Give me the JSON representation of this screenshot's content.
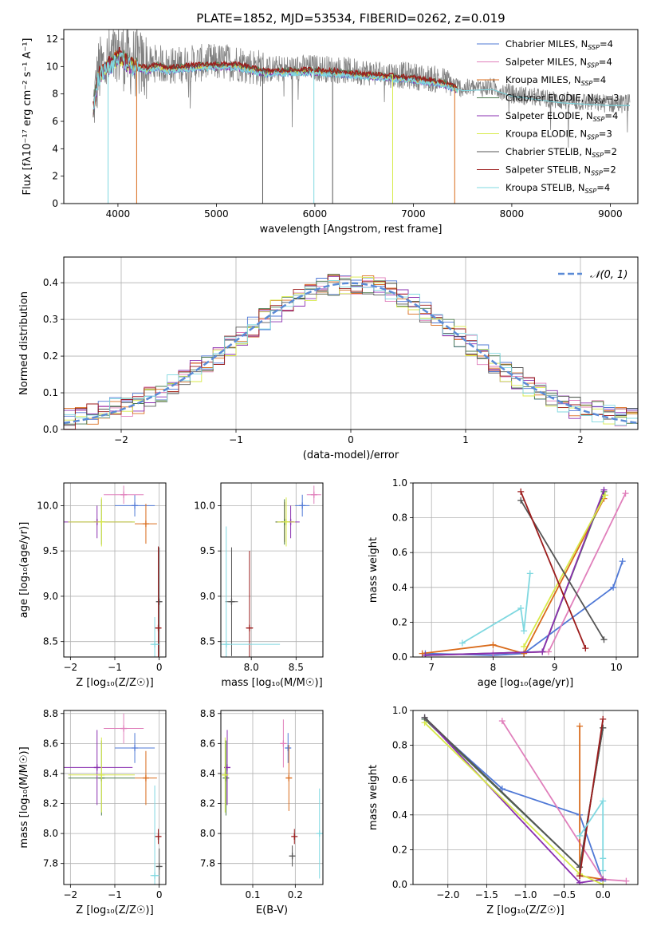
{
  "figure_title": "PLATE=1852, MJD=53534, FIBERID=0262, z=0.019",
  "palette": [
    "#4f78d6",
    "#e07fbb",
    "#d96b1b",
    "#4c7a4c",
    "#8a2fb0",
    "#d8ea4a",
    "#555555",
    "#9c1c1c",
    "#7fd8e0"
  ],
  "models": [
    {
      "name": "Chabrier MILES",
      "nssp": "4"
    },
    {
      "name": "Salpeter MILES",
      "nssp": "4"
    },
    {
      "name": "Kroupa MILES",
      "nssp": "4"
    },
    {
      "name": "Chabrier ELODIE",
      "nssp": "3"
    },
    {
      "name": "Salpeter ELODIE",
      "nssp": "4"
    },
    {
      "name": "Kroupa ELODIE",
      "nssp": "3"
    },
    {
      "name": "Chabrier STELIB",
      "nssp": "2"
    },
    {
      "name": "Salpeter STELIB",
      "nssp": "2"
    },
    {
      "name": "Kroupa STELIB",
      "nssp": "4"
    }
  ],
  "chart_data": [
    {
      "id": "spectrum",
      "type": "line",
      "xlabel": "wavelength [Angstrom, rest frame]",
      "ylabel": "Flux [fλ10⁻¹⁷ erg cm⁻² s⁻¹ A⁻¹]",
      "xlim": [
        3450,
        9280
      ],
      "ylim": [
        0,
        12.7
      ],
      "xticks": [
        4000,
        5000,
        6000,
        7000,
        8000,
        9000
      ],
      "yticks": [
        0,
        2,
        4,
        6,
        8,
        10,
        12
      ],
      "legend": "top-right",
      "continuum": {
        "x": [
          3750,
          3800,
          3850,
          3900,
          3950,
          4000,
          4050,
          4100,
          4200,
          4300,
          4400,
          4500,
          4700,
          5000,
          5200,
          5500,
          6000,
          6500,
          7000,
          7300,
          7500,
          7800,
          8000,
          8500,
          9000,
          9200
        ],
        "y": [
          7.0,
          9.5,
          10.0,
          10.3,
          10.5,
          11.0,
          10.8,
          10.5,
          10.2,
          10.0,
          10.3,
          10.0,
          10.2,
          10.3,
          10.3,
          9.8,
          9.9,
          9.6,
          9.3,
          9.0,
          8.4,
          8.5,
          8.0,
          7.5,
          7.3,
          7.3
        ]
      },
      "data_range": [
        3750,
        9200
      ],
      "dropouts": [
        {
          "x": 3900,
          "series": 8
        },
        {
          "x": 4190,
          "series": 2
        },
        {
          "x": 5470,
          "series": 6
        },
        {
          "x": 5990,
          "series": 8
        },
        {
          "x": 6180,
          "series": 6
        },
        {
          "x": 6790,
          "series": 5
        },
        {
          "x": 7420,
          "series": 2
        }
      ]
    },
    {
      "id": "residual-histogram",
      "type": "bar",
      "xlabel": "(data-model)/error",
      "ylabel": "Normed distribution",
      "xlim": [
        -2.5,
        2.5
      ],
      "ylim": [
        0,
        0.47
      ],
      "xticks": [
        -2,
        -1,
        0,
        1,
        2
      ],
      "yticks": [
        0.0,
        0.1,
        0.2,
        0.3,
        0.4
      ],
      "reference_curve": {
        "name": "𝒩(0, 1)",
        "style": "dashed",
        "color": "#5b8bd6"
      },
      "bin_width": 0.1,
      "bin_range": [
        -2.5,
        2.5
      ],
      "series_count": 9
    },
    {
      "id": "age-vs-metallicity",
      "type": "scatter",
      "xlabel": "Z [log₁₀(Z/Z☉)]",
      "ylabel": "age  [log₁₀(age/yr)]",
      "xlim": [
        -2.15,
        0.15
      ],
      "ylim": [
        8.33,
        10.25
      ],
      "xticks": [
        -2,
        -1,
        0
      ],
      "yticks": [
        8.5,
        9.0,
        9.5,
        10.0
      ],
      "points": [
        {
          "s": 0,
          "x": -0.55,
          "y": 10.0,
          "xe": 0.45,
          "ye": 0.12
        },
        {
          "s": 1,
          "x": -0.8,
          "y": 10.12,
          "xe": 0.45,
          "ye": 0.1
        },
        {
          "s": 2,
          "x": -0.3,
          "y": 9.8,
          "xe": 0.25,
          "ye": 0.22
        },
        {
          "s": 3,
          "x": -1.3,
          "y": 9.82,
          "xe": 0.75,
          "ye": 0.25
        },
        {
          "s": 4,
          "x": -1.4,
          "y": 9.82,
          "xe": 0.8,
          "ye": 0.18
        },
        {
          "s": 5,
          "x": -1.3,
          "y": 9.82,
          "xe": 0.75,
          "ye": 0.27
        },
        {
          "s": 6,
          "x": 0.0,
          "y": 8.94,
          "xe": 0.05,
          "ye": 0.6
        },
        {
          "s": 7,
          "x": -0.02,
          "y": 8.65,
          "xe": 0.05,
          "ye": 0.9
        },
        {
          "s": 8,
          "x": -0.1,
          "y": 8.47,
          "xe": 0.1,
          "ye": 0.3
        }
      ]
    },
    {
      "id": "age-vs-mass",
      "type": "scatter",
      "xlabel": "mass [log₁₀(M/M☉)]",
      "ylabel": "",
      "xlim": [
        7.66,
        8.8
      ],
      "ylim": [
        8.33,
        10.25
      ],
      "xticks": [
        8.0,
        8.5
      ],
      "yticks": [
        8.5,
        9.0,
        9.5,
        10.0
      ],
      "points": [
        {
          "s": 0,
          "x": 8.57,
          "y": 10.0,
          "xe": 0.08,
          "ye": 0.12
        },
        {
          "s": 1,
          "x": 8.7,
          "y": 10.12,
          "xe": 0.08,
          "ye": 0.1
        },
        {
          "s": 2,
          "x": 8.37,
          "y": 9.82,
          "xe": 0.1,
          "ye": 0.22
        },
        {
          "s": 3,
          "x": 8.37,
          "y": 9.82,
          "xe": 0.1,
          "ye": 0.25
        },
        {
          "s": 4,
          "x": 8.44,
          "y": 9.82,
          "xe": 0.1,
          "ye": 0.18
        },
        {
          "s": 5,
          "x": 8.39,
          "y": 9.82,
          "xe": 0.1,
          "ye": 0.27
        },
        {
          "s": 6,
          "x": 7.78,
          "y": 8.94,
          "xe": 0.07,
          "ye": 0.6
        },
        {
          "s": 7,
          "x": 7.98,
          "y": 8.65,
          "xe": 0.04,
          "ye": 0.85
        },
        {
          "s": 8,
          "x": 7.72,
          "y": 8.47,
          "xe": 0.6,
          "ye": 1.3
        }
      ]
    },
    {
      "id": "mass-weight-vs-age",
      "type": "line",
      "xlabel": "age  [log₁₀(age/yr)]",
      "ylabel": "mass weight",
      "xlim": [
        6.7,
        10.35
      ],
      "ylim": [
        0,
        1.0
      ],
      "xticks": [
        7,
        8,
        9,
        10
      ],
      "yticks": [
        0.0,
        0.2,
        0.4,
        0.6,
        0.8,
        1.0
      ],
      "series": [
        {
          "s": 0,
          "x": [
            6.9,
            8.0,
            8.5,
            9.95,
            10.1
          ],
          "y": [
            0.02,
            0.01,
            0.02,
            0.4,
            0.55
          ]
        },
        {
          "s": 1,
          "x": [
            6.9,
            8.0,
            8.9,
            10.15
          ],
          "y": [
            0.01,
            0.02,
            0.03,
            0.94
          ]
        },
        {
          "s": 2,
          "x": [
            6.85,
            8.0,
            8.5,
            9.8
          ],
          "y": [
            0.02,
            0.07,
            0.02,
            0.91
          ]
        },
        {
          "s": 3,
          "x": [
            6.9,
            8.8,
            9.8
          ],
          "y": [
            0.01,
            0.03,
            0.95
          ]
        },
        {
          "s": 4,
          "x": [
            6.9,
            8.8,
            9.8
          ],
          "y": [
            0.01,
            0.03,
            0.96
          ]
        },
        {
          "s": 5,
          "x": [
            8.5,
            9.82
          ],
          "y": [
            0.06,
            0.93
          ]
        },
        {
          "s": 6,
          "x": [
            8.45,
            9.8
          ],
          "y": [
            0.9,
            0.1
          ]
        },
        {
          "s": 7,
          "x": [
            8.45,
            9.5
          ],
          "y": [
            0.95,
            0.05
          ]
        },
        {
          "s": 8,
          "x": [
            7.5,
            8.45,
            8.5,
            8.6
          ],
          "y": [
            0.08,
            0.28,
            0.15,
            0.48
          ]
        }
      ]
    },
    {
      "id": "mass-vs-metallicity",
      "type": "scatter",
      "xlabel": "Z [log₁₀(Z/Z☉)]",
      "ylabel": "mass [log₁₀(M/M☉)]",
      "xlim": [
        -2.15,
        0.15
      ],
      "ylim": [
        7.66,
        8.82
      ],
      "xticks": [
        -2,
        -1,
        0
      ],
      "yticks": [
        7.8,
        8.0,
        8.2,
        8.4,
        8.6,
        8.8
      ],
      "points": [
        {
          "s": 0,
          "x": -0.55,
          "y": 8.57,
          "xe": 0.45,
          "ye": 0.1
        },
        {
          "s": 1,
          "x": -0.8,
          "y": 8.7,
          "xe": 0.45,
          "ye": 0.1
        },
        {
          "s": 2,
          "x": -0.3,
          "y": 8.37,
          "xe": 0.25,
          "ye": 0.18
        },
        {
          "s": 3,
          "x": -1.3,
          "y": 8.37,
          "xe": 0.75,
          "ye": 0.25
        },
        {
          "s": 4,
          "x": -1.4,
          "y": 8.44,
          "xe": 0.8,
          "ye": 0.25
        },
        {
          "s": 5,
          "x": -1.3,
          "y": 8.39,
          "xe": 0.75,
          "ye": 0.25
        },
        {
          "s": 6,
          "x": 0.0,
          "y": 7.78,
          "xe": 0.05,
          "ye": 0.12
        },
        {
          "s": 7,
          "x": -0.02,
          "y": 7.98,
          "xe": 0.05,
          "ye": 0.05
        },
        {
          "s": 8,
          "x": -0.1,
          "y": 7.72,
          "xe": 0.1,
          "ye": 0.6
        }
      ]
    },
    {
      "id": "mass-vs-ebv",
      "type": "scatter",
      "xlabel": "E(B-V)",
      "ylabel": "",
      "xlim": [
        0.025,
        0.265
      ],
      "ylim": [
        7.66,
        8.82
      ],
      "xticks": [
        0.1,
        0.2
      ],
      "yticks": [
        7.8,
        8.0,
        8.2,
        8.4,
        8.6,
        8.8
      ],
      "points": [
        {
          "s": 0,
          "x": 0.183,
          "y": 8.57,
          "xe": 0.0,
          "ye": 0.1
        },
        {
          "s": 1,
          "x": 0.172,
          "y": 8.6,
          "xe": 0.0,
          "ye": 0.16
        },
        {
          "s": 2,
          "x": 0.185,
          "y": 8.37,
          "xe": 0.0,
          "ye": 0.22
        },
        {
          "s": 3,
          "x": 0.037,
          "y": 8.37,
          "xe": 0.0,
          "ye": 0.25
        },
        {
          "s": 4,
          "x": 0.04,
          "y": 8.44,
          "xe": 0.0,
          "ye": 0.25
        },
        {
          "s": 5,
          "x": 0.035,
          "y": 8.39,
          "xe": 0.0,
          "ye": 0.25
        },
        {
          "s": 6,
          "x": 0.193,
          "y": 7.85,
          "xe": 0.0,
          "ye": 0.07
        },
        {
          "s": 7,
          "x": 0.198,
          "y": 7.98,
          "xe": 0.0,
          "ye": 0.05
        },
        {
          "s": 8,
          "x": 0.257,
          "y": 8.0,
          "xe": 0.0,
          "ye": 0.3
        }
      ]
    },
    {
      "id": "mass-weight-vs-metallicity",
      "type": "line",
      "xlabel": "Z [log₁₀(Z/Z☉)]",
      "ylabel": "mass weight",
      "xlim": [
        -2.45,
        0.45
      ],
      "ylim": [
        0,
        1.0
      ],
      "xticks": [
        -2.0,
        -1.5,
        -1.0,
        -0.5,
        0.0
      ],
      "yticks": [
        0.0,
        0.2,
        0.4,
        0.6,
        0.8,
        1.0
      ],
      "series": [
        {
          "s": 0,
          "x": [
            -2.3,
            -1.3,
            -0.3,
            0.0
          ],
          "y": [
            0.95,
            0.55,
            0.4,
            0.02
          ]
        },
        {
          "s": 1,
          "x": [
            -1.3,
            0.0,
            0.3
          ],
          "y": [
            0.94,
            0.03,
            0.02
          ]
        },
        {
          "s": 2,
          "x": [
            -0.3,
            -0.3,
            0.0
          ],
          "y": [
            0.91,
            0.05,
            0.03
          ]
        },
        {
          "s": 3,
          "x": [
            -2.3,
            -0.3,
            0.0
          ],
          "y": [
            0.95,
            0.1,
            0.9
          ]
        },
        {
          "s": 4,
          "x": [
            -2.3,
            -0.3,
            0.0
          ],
          "y": [
            0.96,
            0.01,
            0.03
          ]
        },
        {
          "s": 5,
          "x": [
            -2.3,
            -0.3,
            0.0
          ],
          "y": [
            0.93,
            0.06,
            0.0
          ]
        },
        {
          "s": 6,
          "x": [
            -2.3,
            -0.3,
            0.0
          ],
          "y": [
            0.96,
            0.1,
            0.9
          ]
        },
        {
          "s": 7,
          "x": [
            -0.3,
            0.0
          ],
          "y": [
            0.05,
            0.95
          ]
        },
        {
          "s": 8,
          "x": [
            -0.3,
            0.0,
            0.0,
            0.0
          ],
          "y": [
            0.28,
            0.48,
            0.15,
            0.08
          ]
        }
      ]
    }
  ]
}
